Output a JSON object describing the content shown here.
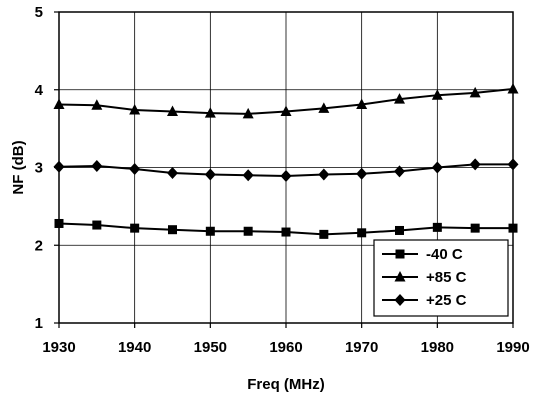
{
  "chart_data": {
    "type": "line",
    "title": "",
    "xlabel": "Freq (MHz)",
    "ylabel": "NF (dB)",
    "xlim": [
      1930,
      1990
    ],
    "ylim": [
      1,
      5
    ],
    "xticks": [
      1930,
      1940,
      1950,
      1960,
      1970,
      1980,
      1990
    ],
    "yticks": [
      1,
      2,
      3,
      4,
      5
    ],
    "grid": true,
    "legend_position": "bottom-right",
    "x": [
      1930,
      1935,
      1940,
      1945,
      1950,
      1955,
      1960,
      1965,
      1970,
      1975,
      1980,
      1985,
      1990
    ],
    "series": [
      {
        "name": "-40 C",
        "marker": "square",
        "values": [
          2.28,
          2.26,
          2.22,
          2.2,
          2.18,
          2.18,
          2.17,
          2.14,
          2.16,
          2.19,
          2.23,
          2.22,
          2.22
        ]
      },
      {
        "name": "+85 C",
        "marker": "triangle",
        "values": [
          3.81,
          3.8,
          3.74,
          3.72,
          3.7,
          3.69,
          3.72,
          3.76,
          3.81,
          3.88,
          3.93,
          3.96,
          4.01
        ]
      },
      {
        "name": "+25 C",
        "marker": "diamond",
        "values": [
          3.01,
          3.02,
          2.98,
          2.93,
          2.91,
          2.9,
          2.89,
          2.91,
          2.92,
          2.95,
          3.0,
          3.04,
          3.04
        ]
      }
    ],
    "colors": {
      "line": "#000000",
      "grid": "#000000",
      "background": "#ffffff"
    }
  }
}
